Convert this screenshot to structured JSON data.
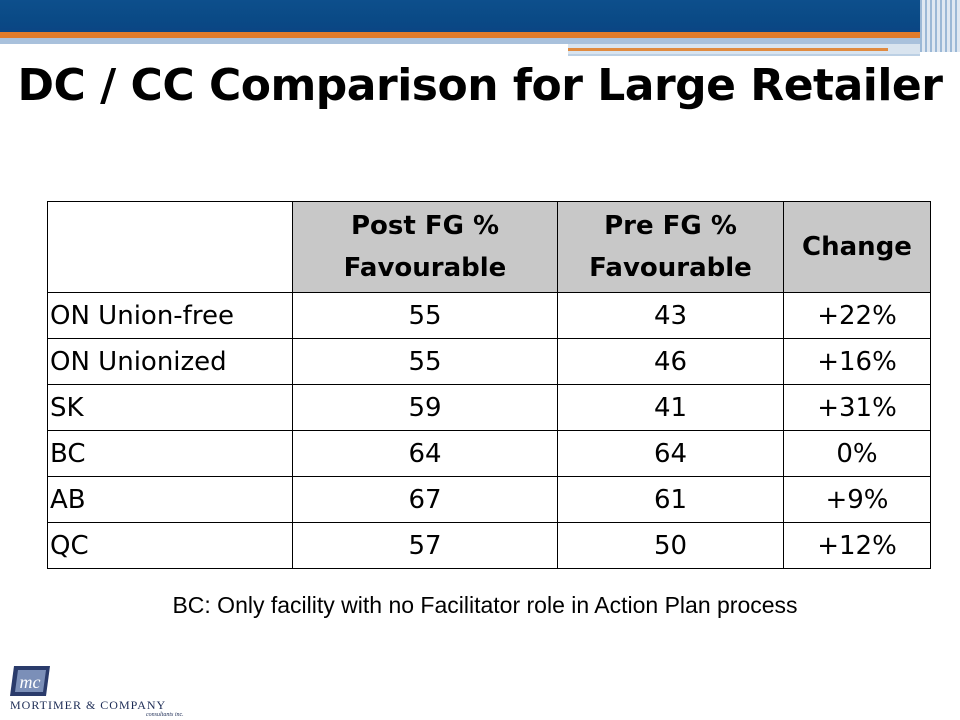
{
  "slide": {
    "title": "DC / CC Comparison for Large Retailer",
    "note": "BC:  Only facility with no Facilitator role in Action Plan process"
  },
  "table": {
    "headers": [
      "",
      "Post FG % Favourable",
      "Pre FG % Favourable",
      "Change"
    ],
    "rows": [
      {
        "label": "ON Union-free",
        "post": "55",
        "pre": "43",
        "change": "+22%"
      },
      {
        "label": "ON Unionized",
        "post": "55",
        "pre": "46",
        "change": "+16%"
      },
      {
        "label": "SK",
        "post": "59",
        "pre": "41",
        "change": "+31%"
      },
      {
        "label": "BC",
        "post": "64",
        "pre": "64",
        "change": "0%"
      },
      {
        "label": "AB",
        "post": "67",
        "pre": "61",
        "change": "+9%"
      },
      {
        "label": "QC",
        "post": "57",
        "pre": "50",
        "change": "+12%"
      }
    ]
  },
  "logo": {
    "monogram": "mc",
    "name": "MORTIMER & COMPANY",
    "tagline": "consultants inc."
  },
  "colors": {
    "banner_blue": "#0d4f8c",
    "banner_orange": "#e07b2a",
    "header_fill": "#c8c8c8",
    "logo_navy": "#1d2c55"
  }
}
